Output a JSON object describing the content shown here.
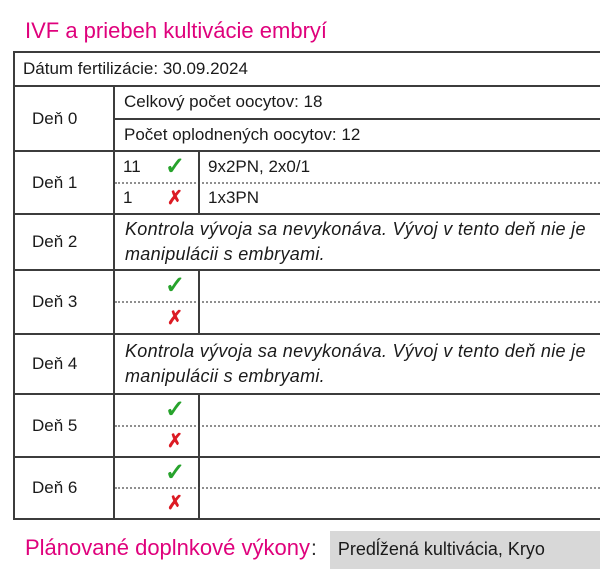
{
  "page": {
    "title": "IVF a priebeh kultivácie embryí"
  },
  "icons": {
    "check": "✓",
    "cross": "✗"
  },
  "colors": {
    "accent_magenta": "#df017c",
    "check_green": "#27a32c",
    "cross_red": "#dc1b24",
    "value_bg_gray": "#d8d8d8"
  },
  "table": {
    "date_row": "Dátum fertilizácie: 30.09.2024",
    "days": {
      "d0": {
        "label": "Deň 0",
        "lines": [
          "Celkový počet oocytov: 18",
          "Počet oplodnených oocytov: 12"
        ]
      },
      "d1": {
        "label": "Deň 1",
        "ok_count": "11",
        "ok_text": "9x2PN, 2x0/1",
        "fail_count": "1",
        "fail_text": "1x3PN"
      },
      "d2": {
        "label": "Deň 2",
        "lines": [
          "Kontrola vývoja sa nevykonáva. Vývoj v tento deň nie je",
          "manipulácii s embryami."
        ]
      },
      "d3": {
        "label": "Deň 3",
        "ok_text": "",
        "fail_text": ""
      },
      "d4": {
        "label": "Deň 4",
        "lines": [
          "Kontrola vývoja sa nevykonáva. Vývoj v tento deň nie je",
          "manipulácii s embryami."
        ]
      },
      "d5": {
        "label": "Deň 5",
        "ok_text": "",
        "fail_text": ""
      },
      "d6": {
        "label": "Deň 6",
        "ok_text": "",
        "fail_text": ""
      }
    }
  },
  "footer": {
    "label": "Plánované doplnkové výkony",
    "colon": ":",
    "value": "Predĺžená kultivácia, Kryo"
  }
}
